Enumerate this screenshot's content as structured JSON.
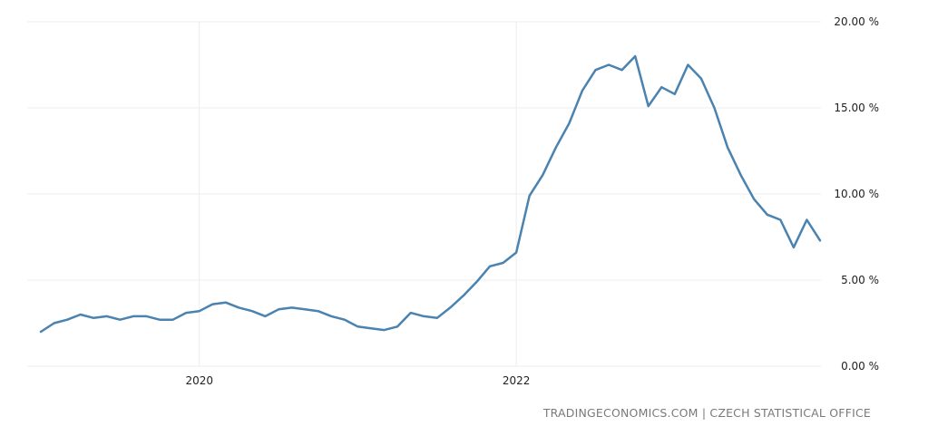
{
  "source": "TRADINGECONOMICS.COM | CZECH STATISTICAL OFFICE",
  "colors": {
    "line": "#4a82b0",
    "grid": "#ececec",
    "axis_text": "#222222",
    "source_text": "#7a7a7a"
  },
  "chart_data": {
    "type": "line",
    "title": "",
    "xlabel": "",
    "ylabel": "",
    "x_tick_labels": [
      "2020",
      "2022"
    ],
    "y_tick_labels": [
      "0.00 %",
      "5.00 %",
      "10.00 %",
      "15.00 %",
      "20.00 %"
    ],
    "ylim": [
      0,
      20
    ],
    "grid": true,
    "series": [
      {
        "x": [
          "2019-01",
          "2019-02",
          "2019-03",
          "2019-04",
          "2019-05",
          "2019-06",
          "2019-07",
          "2019-08",
          "2019-09",
          "2019-10",
          "2019-11",
          "2019-12",
          "2020-01",
          "2020-02",
          "2020-03",
          "2020-04",
          "2020-05",
          "2020-06",
          "2020-07",
          "2020-08",
          "2020-09",
          "2020-10",
          "2020-11",
          "2020-12",
          "2021-01",
          "2021-02",
          "2021-03",
          "2021-04",
          "2021-05",
          "2021-06",
          "2021-07",
          "2021-08",
          "2021-09",
          "2021-10",
          "2021-11",
          "2021-12",
          "2022-01",
          "2022-02",
          "2022-03",
          "2022-04",
          "2022-05",
          "2022-06",
          "2022-07",
          "2022-08",
          "2022-09",
          "2022-10",
          "2022-11",
          "2022-12",
          "2023-01",
          "2023-02",
          "2023-03",
          "2023-04",
          "2023-05",
          "2023-06",
          "2023-07",
          "2023-08",
          "2023-09",
          "2023-10",
          "2023-11",
          "2023-12"
        ],
        "values": [
          2.0,
          2.5,
          2.7,
          3.0,
          2.8,
          2.9,
          2.7,
          2.9,
          2.9,
          2.7,
          2.7,
          3.1,
          3.2,
          3.6,
          3.7,
          3.4,
          3.2,
          2.9,
          3.3,
          3.4,
          3.3,
          3.2,
          2.9,
          2.7,
          2.3,
          2.2,
          2.1,
          2.3,
          3.1,
          2.9,
          2.8,
          3.4,
          4.1,
          4.9,
          5.8,
          6.0,
          6.6,
          9.9,
          11.1,
          12.7,
          14.1,
          16.0,
          17.2,
          17.5,
          17.2,
          18.0,
          15.1,
          16.2,
          15.8,
          17.5,
          16.7,
          15.0,
          12.7,
          11.1,
          9.7,
          8.8,
          8.5,
          6.9,
          8.5,
          7.3
        ]
      }
    ]
  }
}
